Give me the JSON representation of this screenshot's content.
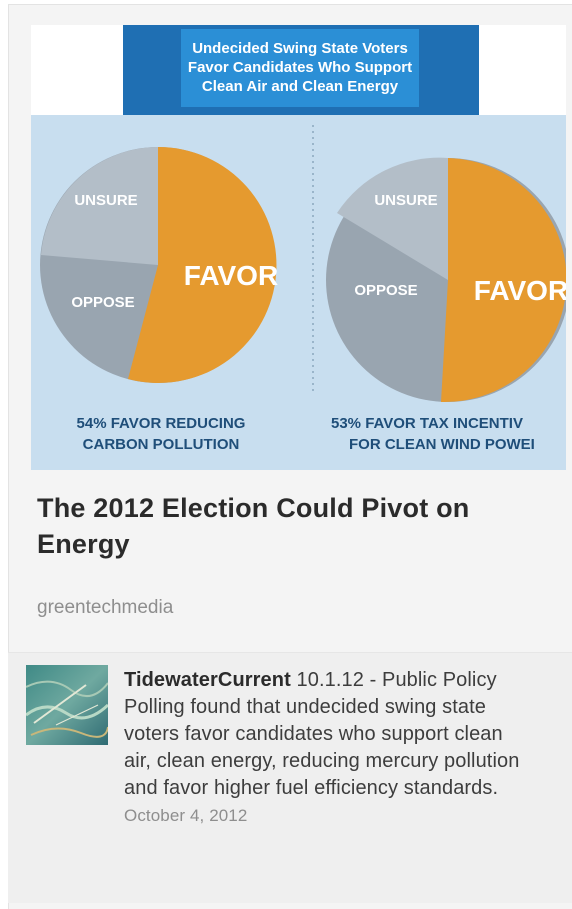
{
  "pin": {
    "image": {
      "banner_lines": [
        "Undecided Swing State Voters",
        "Favor Candidates Who Support",
        "Clean Air and Clean Energy"
      ],
      "left_chart": {
        "labels": {
          "favor": "FAVOR",
          "oppose": "OPPOSE",
          "unsure": "UNSURE"
        },
        "caption_lines": [
          "54% FAVOR REDUCING",
          "CARBON POLLUTION"
        ]
      },
      "right_chart": {
        "labels": {
          "favor": "FAVOR",
          "oppose": "OPPOSE",
          "unsure": "UNSURE"
        },
        "caption_lines": [
          "53% FAVOR TAX INCENTIV",
          "FOR CLEAN WIND POWEI"
        ]
      },
      "colors": {
        "favor": "#e59a2f",
        "oppose": "#99a5b0",
        "unsure": "#b3bec8",
        "banner": "#2b8fd6",
        "panel": "#c8deef"
      }
    },
    "title": "The 2012 Election Could Pivot on Energy",
    "source": "greentechmedia"
  },
  "comment": {
    "username": "TidewaterCurrent",
    "text": "10.1.12 - Public Policy Polling found that undecided swing state voters favor candidates who support clean air, clean energy, reducing mercury pollution and favor higher fuel efficiency standards.",
    "date": "October 4, 2012"
  }
}
